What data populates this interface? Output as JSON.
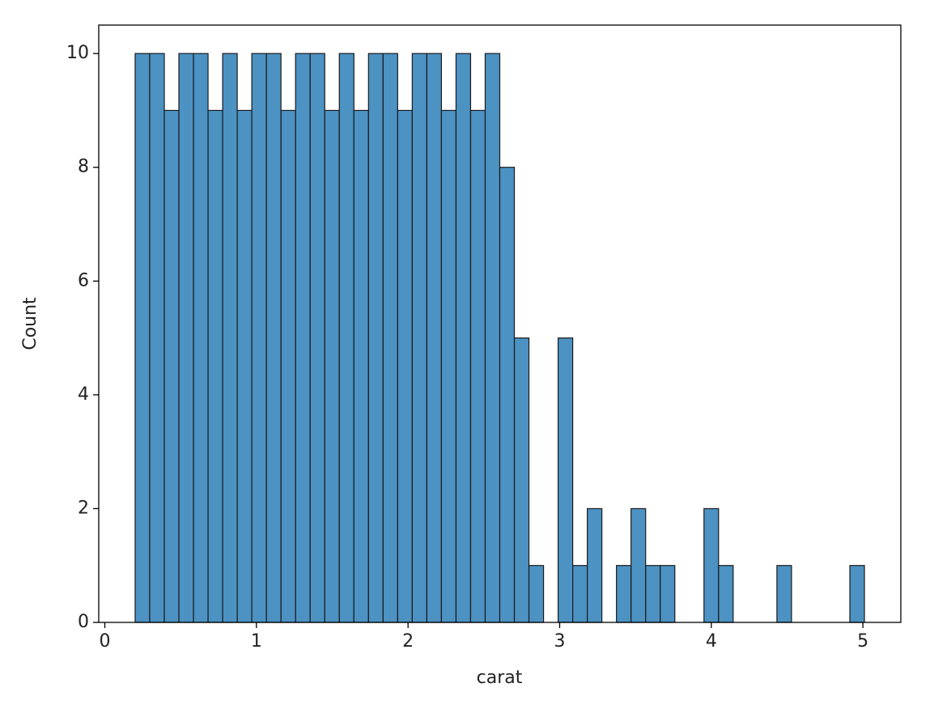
{
  "chart_data": {
    "type": "histogram",
    "xlabel": "carat",
    "ylabel": "Count",
    "color": "#4c92c3",
    "bins": [
      0.2,
      0.2962,
      0.3924,
      0.4886,
      0.5848,
      0.681,
      0.7772,
      0.8734,
      0.9696,
      1.0658,
      1.162,
      1.2582,
      1.3544,
      1.4506,
      1.5468,
      1.643,
      1.7392,
      1.8354,
      1.9316,
      2.0278,
      2.124,
      2.2202,
      2.3164,
      2.4126,
      2.5088,
      2.605,
      2.7012,
      2.7974,
      2.8936,
      2.9898,
      3.086,
      3.1822,
      3.2784,
      3.3746,
      3.4708,
      3.567,
      3.6632,
      3.7594,
      3.8556,
      3.9518,
      4.048,
      4.1442,
      4.2404,
      4.3366,
      4.4328,
      4.529,
      4.6252,
      4.7214,
      4.8176,
      4.9138,
      5.01
    ],
    "values": [
      10,
      10,
      9,
      10,
      10,
      9,
      10,
      9,
      10,
      10,
      9,
      10,
      10,
      9,
      10,
      9,
      10,
      10,
      9,
      10,
      10,
      9,
      10,
      9,
      10,
      8,
      5,
      1,
      0,
      5,
      1,
      2,
      0,
      1,
      2,
      1,
      1,
      0,
      0,
      2,
      1,
      0,
      0,
      0,
      1,
      0,
      0,
      0,
      0,
      1
    ],
    "xlim": [
      -0.04,
      5.25
    ],
    "ylim": [
      0,
      10.5
    ],
    "xticks": [
      0,
      1,
      2,
      3,
      4,
      5
    ],
    "yticks": [
      0,
      2,
      4,
      6,
      8,
      10
    ],
    "grid": false
  }
}
